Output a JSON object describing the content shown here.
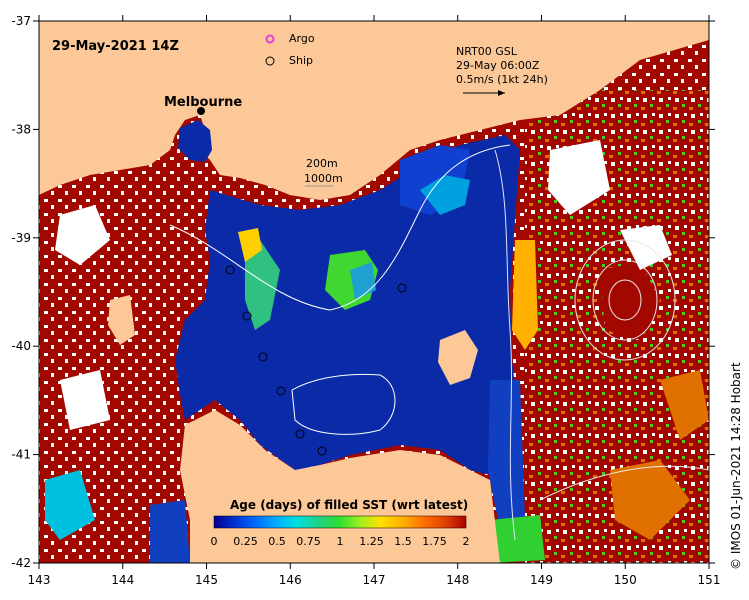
{
  "map": {
    "title": "29-May-2021 14Z",
    "place_label": "Melbourne",
    "lon_ticks": [
      "143",
      "144",
      "145",
      "146",
      "147",
      "148",
      "149",
      "150",
      "151"
    ],
    "lat_ticks": [
      "-37",
      "-38",
      "-39",
      "-40",
      "-41",
      "-42"
    ],
    "lon_range": [
      143,
      151
    ],
    "lat_range": [
      -42,
      -37
    ]
  },
  "legend": {
    "argo_label": "Argo",
    "ship_label": "Ship",
    "isobath_200": "200m",
    "isobath_1000": "1000m",
    "argo_color": "#e040e0"
  },
  "current": {
    "line1": "NRT00 GSL",
    "line2": "29-May 06:00Z",
    "line3": "0.5m/s (1kt 24h)"
  },
  "colorbar": {
    "title": "Age (days) of filled SST (wrt latest)",
    "ticks": [
      "0",
      "0.25",
      "0.5",
      "0.75",
      "1",
      "1.25",
      "1.5",
      "1.75",
      "2"
    ],
    "colors": [
      "#000090",
      "#0030d0",
      "#0070ff",
      "#00b0ff",
      "#00e0e0",
      "#20d080",
      "#30e030",
      "#a0f020",
      "#ffe000",
      "#ffb000",
      "#ff7000",
      "#e04000",
      "#b00000"
    ]
  },
  "credit": "© IMOS 01-Jun-2021 14:28 Hobart",
  "colors": {
    "land": "#fdc898",
    "deep_blue": "#0a2aa8",
    "old": "#a20800",
    "missing": "#ffffff"
  }
}
